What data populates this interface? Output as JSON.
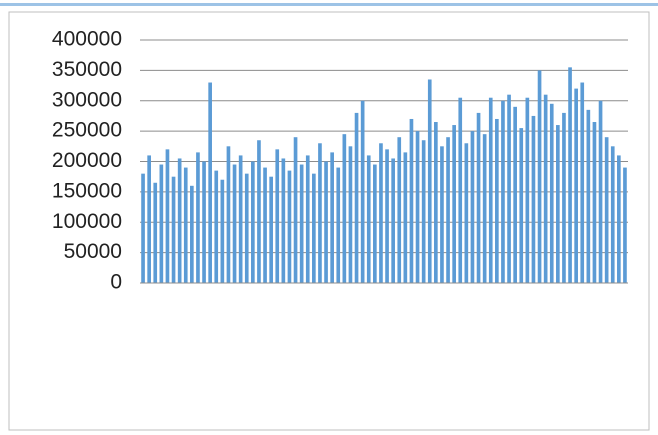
{
  "chart_data": {
    "type": "bar",
    "categories": [
      null,
      null,
      null,
      null,
      null,
      null,
      null,
      null,
      null,
      null,
      null,
      null,
      null,
      null,
      null,
      null,
      null,
      null,
      null,
      null,
      null,
      null,
      null,
      null,
      null,
      null,
      null,
      null,
      null,
      null,
      null,
      null,
      null,
      null,
      null,
      null,
      null,
      null,
      null,
      null,
      null,
      null,
      null,
      null,
      null,
      null,
      null,
      null,
      null,
      null,
      null,
      null,
      null,
      null,
      null,
      null,
      null,
      null,
      null,
      null,
      null,
      null,
      null,
      null,
      null,
      null,
      null,
      null,
      null,
      null,
      null,
      null,
      null,
      null,
      null,
      null,
      null,
      null,
      null,
      null
    ],
    "values": [
      180000,
      210000,
      165000,
      195000,
      220000,
      175000,
      205000,
      190000,
      160000,
      215000,
      200000,
      330000,
      185000,
      170000,
      225000,
      195000,
      210000,
      180000,
      200000,
      235000,
      190000,
      175000,
      220000,
      205000,
      185000,
      240000,
      195000,
      210000,
      180000,
      230000,
      200000,
      215000,
      190000,
      245000,
      225000,
      280000,
      300000,
      210000,
      195000,
      230000,
      220000,
      205000,
      240000,
      215000,
      270000,
      250000,
      235000,
      335000,
      265000,
      225000,
      240000,
      260000,
      305000,
      230000,
      250000,
      280000,
      245000,
      305000,
      270000,
      300000,
      310000,
      290000,
      255000,
      305000,
      275000,
      350000,
      310000,
      295000,
      260000,
      280000,
      355000,
      320000,
      330000,
      285000,
      265000,
      300000,
      240000,
      225000,
      210000,
      190000
    ],
    "color": "#5b9bd5",
    "ylim": [
      0,
      400000
    ],
    "yticks": [
      0,
      50000,
      100000,
      150000,
      200000,
      250000,
      300000,
      350000,
      400000
    ],
    "grid": true
  }
}
